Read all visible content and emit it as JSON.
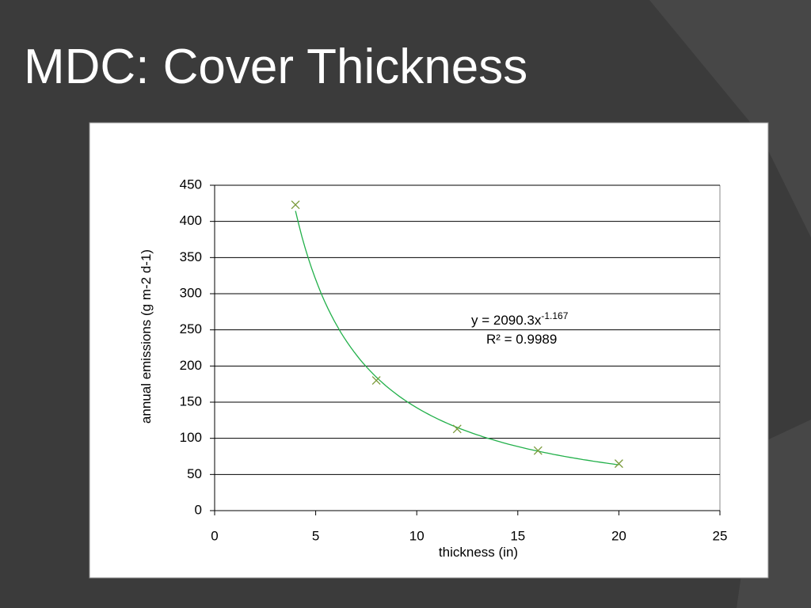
{
  "slide_title": "MDC:  Cover Thickness",
  "chart_data": {
    "type": "scatter",
    "x_label": "thickness (in)",
    "y_label": "annual emissions (g m-2 d-1)",
    "series": [
      {
        "color": "#7a9a3a",
        "marker": "x",
        "x": [
          4,
          8,
          12,
          16,
          20
        ],
        "values": [
          423,
          180,
          113,
          83,
          65
        ]
      }
    ],
    "trendline": {
      "type": "power",
      "color": "#22b04a",
      "coefficient": 2090.3,
      "exponent": -1.167,
      "equation_label": "y = 2090.3x",
      "exponent_label": "-1.167",
      "r2_label": "R² = 0.9989"
    },
    "xlim": [
      0,
      25
    ],
    "xticks": [
      0,
      5,
      10,
      15,
      20,
      25
    ],
    "ylim": [
      0,
      450
    ],
    "yticks": [
      0,
      50,
      100,
      150,
      200,
      250,
      300,
      350,
      400,
      450
    ],
    "grid": true
  }
}
